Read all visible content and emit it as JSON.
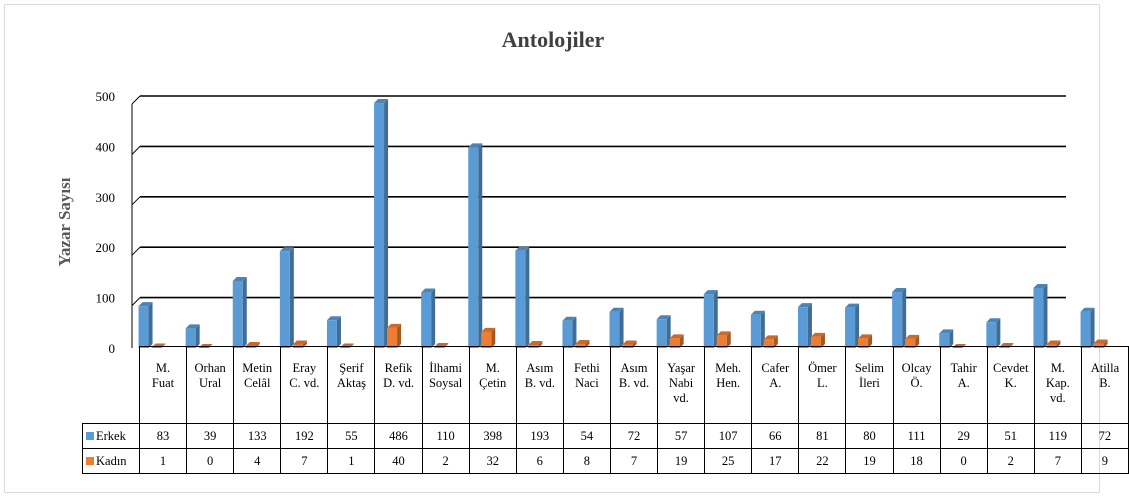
{
  "chart_data": {
    "type": "bar",
    "title": "Antolojiler",
    "ylabel": "Yazar Sayısı",
    "xlabel": "",
    "ylim": [
      0,
      500
    ],
    "yticks": [
      0,
      100,
      200,
      300,
      400,
      500
    ],
    "grid": true,
    "legend_position": "data-table",
    "categories": [
      [
        "M.",
        "Fuat"
      ],
      [
        "Orhan",
        "Ural"
      ],
      [
        "Metin",
        "Celâl"
      ],
      [
        "Eray",
        "C. vd."
      ],
      [
        "Şerif",
        "Aktaş"
      ],
      [
        "Refik",
        "D. vd."
      ],
      [
        "İlhami",
        "Soysal"
      ],
      [
        "M.",
        "Çetin"
      ],
      [
        "Asım",
        "B. vd."
      ],
      [
        "Fethi",
        "Naci"
      ],
      [
        "Asım",
        "B. vd."
      ],
      [
        "Yaşar",
        "Nabi",
        "vd."
      ],
      [
        "Meh.",
        "Hen."
      ],
      [
        "Cafer",
        "A."
      ],
      [
        "Ömer",
        "L."
      ],
      [
        "Selim",
        "İleri"
      ],
      [
        "Olcay",
        "Ö."
      ],
      [
        "Tahir",
        "A."
      ],
      [
        "Cevdet",
        "K."
      ],
      [
        "M.",
        "Kap.",
        "vd."
      ],
      [
        "Atilla",
        "B."
      ]
    ],
    "series": [
      {
        "name": "Erkek",
        "color": "#5b9bd5",
        "values": [
          83,
          39,
          133,
          192,
          55,
          486,
          110,
          398,
          193,
          54,
          72,
          57,
          107,
          66,
          81,
          80,
          111,
          29,
          51,
          119,
          72
        ]
      },
      {
        "name": "Kadın",
        "color": "#ed7d31",
        "values": [
          1,
          0,
          4,
          7,
          1,
          40,
          2,
          32,
          6,
          8,
          7,
          19,
          25,
          17,
          22,
          19,
          18,
          0,
          2,
          7,
          9
        ]
      }
    ]
  }
}
